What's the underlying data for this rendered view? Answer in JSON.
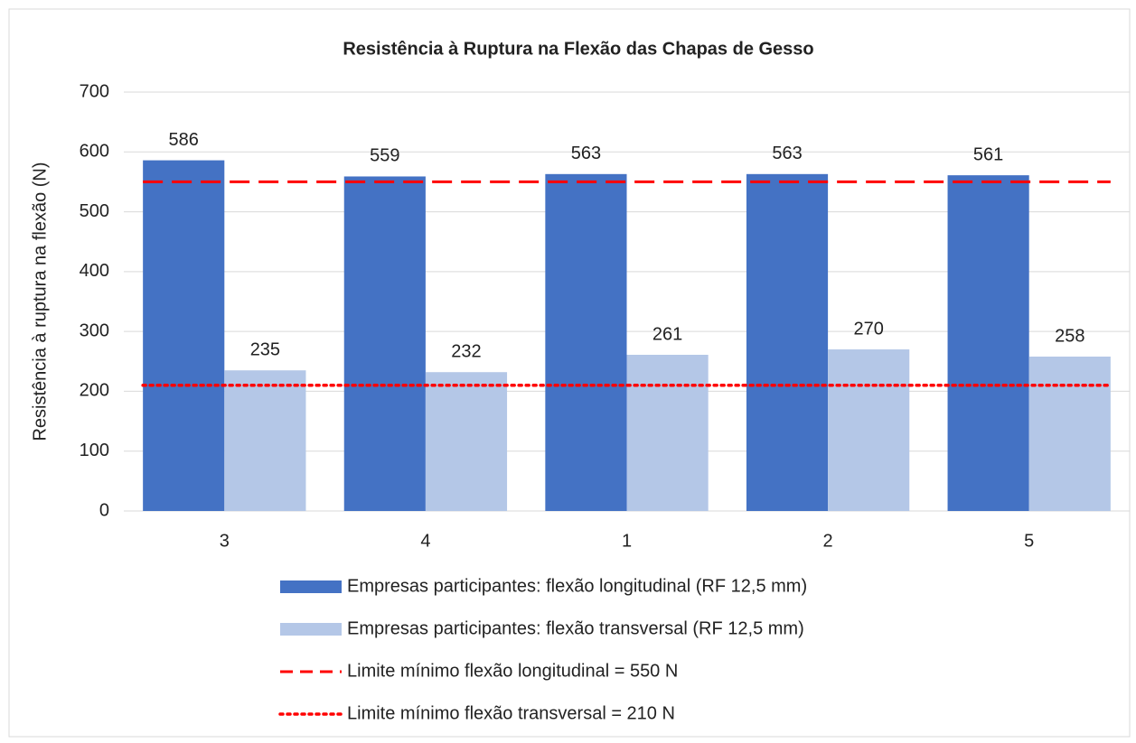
{
  "chart_data": {
    "type": "bar",
    "title": "Resistência à Ruptura na Flexão das Chapas de Gesso",
    "y_label": "Resistência à ruptura na flexão (N)",
    "categories": [
      "3",
      "4",
      "1",
      "2",
      "5"
    ],
    "series": [
      {
        "name": "Empresas participantes: flexão longitudinal (RF 12,5 mm)",
        "type": "bar",
        "color": "#4472c4",
        "values": [
          586,
          559,
          563,
          563,
          561
        ]
      },
      {
        "name": "Empresas participantes: flexão transversal (RF 12,5 mm)",
        "type": "bar",
        "color": "#b4c7e7",
        "values": [
          235,
          232,
          261,
          270,
          258
        ]
      },
      {
        "name": "Limite mínimo flexão longitudinal = 550 N",
        "type": "line",
        "style": "dashed",
        "color": "#ff0000",
        "values": [
          550,
          550,
          550,
          550,
          550
        ]
      },
      {
        "name": "Limite mínimo flexão transversal = 210 N",
        "type": "line",
        "style": "dotted",
        "color": "#ff0000",
        "values": [
          210,
          210,
          210,
          210,
          210
        ]
      }
    ],
    "ylim": [
      0,
      700
    ],
    "yticks": [
      0,
      100,
      200,
      300,
      400,
      500,
      600,
      700
    ],
    "grid": true,
    "legend": "bottom"
  }
}
